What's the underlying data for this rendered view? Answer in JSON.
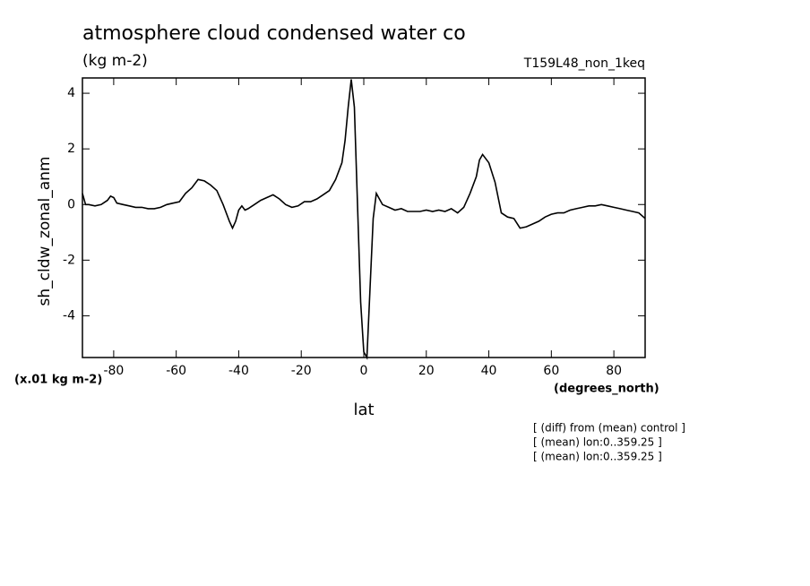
{
  "chart_data": {
    "type": "line",
    "title": "atmosphere cloud condensed water co",
    "subtitle": "(kg m-2)",
    "run_label": "T159L48_non_1keq",
    "y_label": "sh_cldw_zonal_anm",
    "y_units": "(x.01 kg m-2)",
    "x_units": "(degrees_north)",
    "x_label": "lat",
    "notes": [
      "[ (diff) from (mean) control ]",
      "[ (mean) lon:0..359.25 ]",
      "[ (mean) lon:0..359.25 ]"
    ],
    "color": "#000000",
    "x": [
      -90,
      -89,
      -88,
      -86,
      -84,
      -82,
      -81,
      -80,
      -79,
      -77,
      -75,
      -73,
      -71,
      -69,
      -67,
      -65,
      -63,
      -61,
      -59,
      -57,
      -55,
      -53,
      -51,
      -49,
      -47,
      -45,
      -43,
      -42,
      -41,
      -40,
      -39,
      -38,
      -37,
      -35,
      -33,
      -31,
      -29,
      -27,
      -25,
      -23,
      -21,
      -19,
      -17,
      -15,
      -13,
      -11,
      -9,
      -7,
      -6,
      -5,
      -4,
      -3,
      -2,
      -1,
      0,
      1,
      2,
      3,
      4,
      5,
      6,
      8,
      10,
      12,
      14,
      16,
      18,
      20,
      22,
      24,
      26,
      28,
      30,
      32,
      34,
      36,
      37,
      38,
      40,
      42,
      44,
      46,
      48,
      50,
      52,
      54,
      56,
      58,
      60,
      62,
      64,
      66,
      68,
      70,
      72,
      74,
      76,
      78,
      80,
      82,
      84,
      86,
      88,
      90
    ],
    "values": [
      0.4,
      0.0,
      0.0,
      -0.05,
      0.0,
      0.15,
      0.3,
      0.25,
      0.05,
      0.0,
      -0.05,
      -0.1,
      -0.1,
      -0.15,
      -0.15,
      -0.1,
      0.0,
      0.05,
      0.1,
      0.4,
      0.6,
      0.9,
      0.85,
      0.7,
      0.5,
      0.0,
      -0.6,
      -0.85,
      -0.6,
      -0.2,
      -0.05,
      -0.2,
      -0.15,
      0.0,
      0.15,
      0.25,
      0.35,
      0.2,
      0.0,
      -0.1,
      -0.05,
      0.1,
      0.1,
      0.2,
      0.35,
      0.5,
      0.9,
      1.5,
      2.3,
      3.5,
      4.5,
      3.5,
      0.0,
      -3.5,
      -5.3,
      -5.5,
      -3.0,
      -0.5,
      0.4,
      0.2,
      0.0,
      -0.1,
      -0.2,
      -0.15,
      -0.25,
      -0.25,
      -0.25,
      -0.2,
      -0.25,
      -0.2,
      -0.25,
      -0.15,
      -0.3,
      -0.1,
      0.4,
      1.0,
      1.6,
      1.8,
      1.5,
      0.8,
      -0.3,
      -0.45,
      -0.5,
      -0.85,
      -0.8,
      -0.7,
      -0.6,
      -0.45,
      -0.35,
      -0.3,
      -0.3,
      -0.2,
      -0.15,
      -0.1,
      -0.05,
      -0.05,
      0.0,
      -0.05,
      -0.1,
      -0.15,
      -0.2,
      -0.25,
      -0.3,
      -0.5
    ],
    "xlim": [
      -90,
      90
    ],
    "xticks": [
      -80,
      -60,
      -40,
      -20,
      0,
      20,
      40,
      60,
      80
    ],
    "ylim": [
      -5.5,
      4.55
    ],
    "yticks": [
      -4,
      -2,
      0,
      2,
      4
    ]
  }
}
